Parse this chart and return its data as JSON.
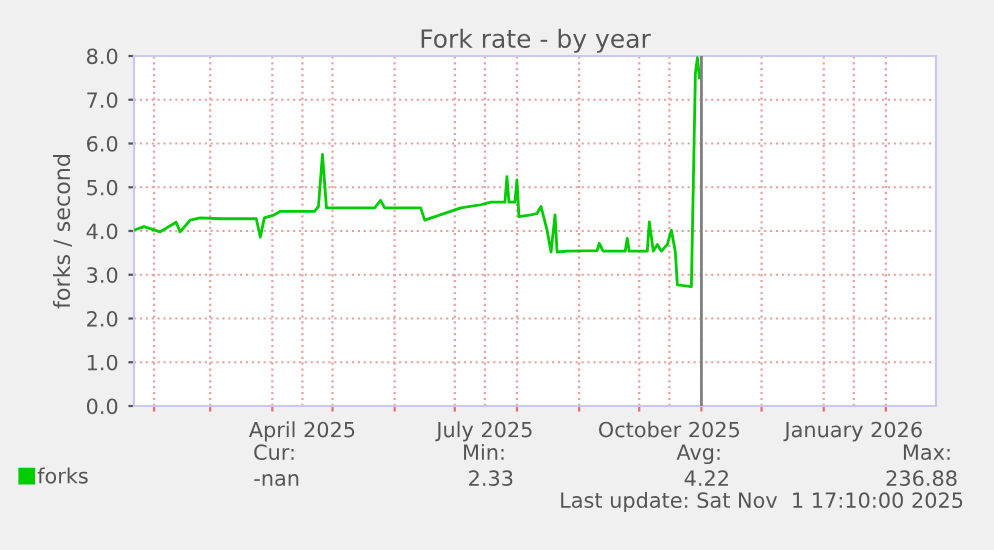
{
  "chart_data": {
    "type": "line",
    "title": "Fork rate - by year",
    "ylabel": "forks / second",
    "x": [
      "2025-01-22",
      "2025-01-27",
      "2025-02-04",
      "2025-02-12",
      "2025-02-14",
      "2025-02-19",
      "2025-02-24",
      "2025-03-06",
      "2025-03-24",
      "2025-03-26",
      "2025-03-28",
      "2025-04-02",
      "2025-04-05",
      "2025-04-22",
      "2025-04-24",
      "2025-04-26",
      "2025-04-28",
      "2025-05-22",
      "2025-05-25",
      "2025-05-27",
      "2025-06-14",
      "2025-06-16",
      "2025-07-04",
      "2025-07-14",
      "2025-07-19",
      "2025-07-26",
      "2025-07-27",
      "2025-07-28",
      "2025-07-31",
      "2025-08-01",
      "2025-08-02",
      "2025-08-08",
      "2025-08-11",
      "2025-08-13",
      "2025-08-16",
      "2025-08-18",
      "2025-08-20",
      "2025-08-21",
      "2025-08-26",
      "2025-09-10",
      "2025-09-11",
      "2025-09-13",
      "2025-09-24",
      "2025-09-25",
      "2025-09-26",
      "2025-10-05",
      "2025-10-06",
      "2025-10-08",
      "2025-10-10",
      "2025-10-12",
      "2025-10-15",
      "2025-10-17",
      "2025-10-19",
      "2025-10-20",
      "2025-10-27",
      "2025-10-29",
      "2025-10-30",
      "2025-10-31"
    ],
    "series": [
      {
        "name": "forks",
        "color": "#00cc00",
        "values": [
          4.02,
          4.1,
          3.98,
          4.2,
          3.98,
          4.25,
          4.3,
          4.28,
          4.28,
          3.86,
          4.3,
          4.37,
          4.45,
          4.45,
          4.56,
          5.75,
          4.53,
          4.53,
          4.7,
          4.53,
          4.53,
          4.25,
          4.53,
          4.6,
          4.66,
          4.66,
          5.24,
          4.66,
          4.66,
          5.17,
          4.33,
          4.37,
          4.4,
          4.56,
          4.02,
          3.52,
          4.37,
          3.52,
          3.54,
          3.55,
          3.72,
          3.54,
          3.54,
          3.83,
          3.54,
          3.54,
          4.21,
          3.54,
          3.69,
          3.54,
          3.69,
          4.02,
          3.52,
          2.77,
          2.73,
          7.6,
          7.96,
          7.5
        ]
      }
    ],
    "xlim": [
      "2025-01-22",
      "2026-02-26"
    ],
    "xticks": [
      {
        "value": "2025-02-01",
        "label": null
      },
      {
        "value": "2025-03-01",
        "label": null
      },
      {
        "value": "2025-04-01",
        "label": null
      },
      {
        "value": "2025-04-16",
        "label": "April 2025"
      },
      {
        "value": "2025-05-01",
        "label": null
      },
      {
        "value": "2025-06-01",
        "label": null
      },
      {
        "value": "2025-07-01",
        "label": null
      },
      {
        "value": "2025-07-16",
        "label": "July 2025"
      },
      {
        "value": "2025-08-01",
        "label": null
      },
      {
        "value": "2025-09-01",
        "label": null
      },
      {
        "value": "2025-10-01",
        "label": null
      },
      {
        "value": "2025-10-16",
        "label": "October 2025"
      },
      {
        "value": "2025-11-01",
        "label": null
      },
      {
        "value": "2025-12-01",
        "label": null
      },
      {
        "value": "2026-01-01",
        "label": null
      },
      {
        "value": "2026-01-16",
        "label": "January 2026"
      },
      {
        "value": "2026-02-01",
        "label": null
      }
    ],
    "ylim": [
      0,
      8
    ],
    "yticks": [
      {
        "value": 0,
        "label": "0.0"
      },
      {
        "value": 1,
        "label": "1.0"
      },
      {
        "value": 2,
        "label": "2.0"
      },
      {
        "value": 3,
        "label": "3.0"
      },
      {
        "value": 4,
        "label": "4.0"
      },
      {
        "value": 5,
        "label": "5.0"
      },
      {
        "value": 6,
        "label": "6.0"
      },
      {
        "value": 7,
        "label": "7.0"
      },
      {
        "value": 8,
        "label": "8.0"
      }
    ],
    "ref_lines": [
      {
        "axis": "x",
        "value": "2025-11-01",
        "color": "#808080"
      }
    ],
    "grid": true,
    "legend": "bottom",
    "line_style": "solid",
    "marker": "none",
    "annotations": [
      "Cur:",
      "-nan",
      "Min:",
      "2.33",
      "Avg:",
      "4.22",
      "Max:",
      "236.88",
      "Last update: Sat Nov  1 17:10:00 2025"
    ]
  }
}
